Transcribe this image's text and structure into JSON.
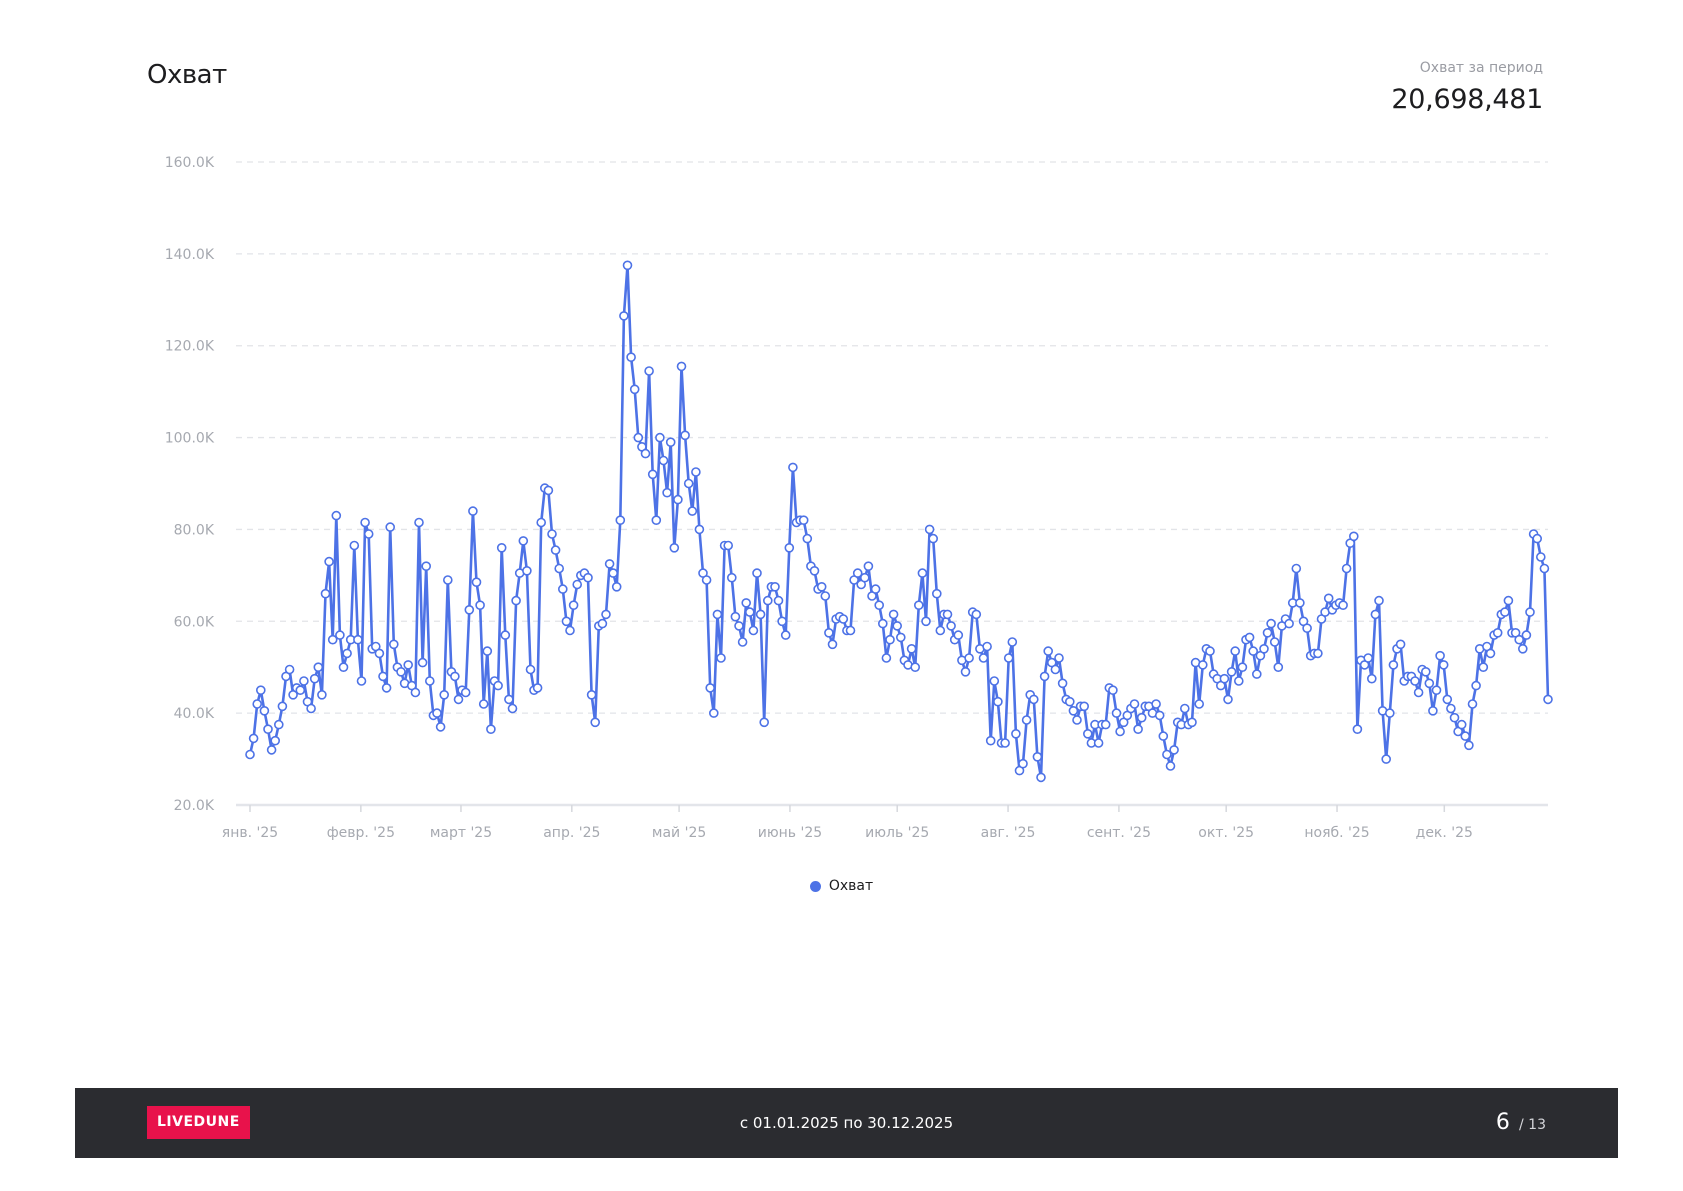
{
  "header": {
    "title": "Охват",
    "summary_label": "Охват за период",
    "summary_value": "20,698,481"
  },
  "legend": {
    "label": "Охват"
  },
  "footer": {
    "logo": "LIVEDUNE",
    "period": "с 01.01.2025 по 30.12.2025",
    "page_current": "6",
    "page_total": "/ 13"
  },
  "colors": {
    "line": "#4d72e6",
    "grid": "#e2e4e8",
    "axis_text": "#a6a9b0",
    "footer_bg": "#2b2c30",
    "logo_bg": "#e8124b"
  },
  "chart_data": {
    "type": "line",
    "title": "",
    "xlabel": "",
    "ylabel": "",
    "ylim": [
      20000,
      160000
    ],
    "y_ticks": [
      20000,
      40000,
      60000,
      80000,
      100000,
      120000,
      140000,
      160000
    ],
    "y_tick_labels": [
      "20.0K",
      "40.0K",
      "60.0K",
      "80.0K",
      "100.0K",
      "120.0K",
      "140.0K",
      "160.0K"
    ],
    "x_start": "2025-01-01",
    "x_end": "2025-12-30",
    "x_ticks": [
      {
        "date": "2025-01-01",
        "label": "янв. '25"
      },
      {
        "date": "2025-02-01",
        "label": "февр. '25"
      },
      {
        "date": "2025-03-01",
        "label": "март '25"
      },
      {
        "date": "2025-04-01",
        "label": "апр. '25"
      },
      {
        "date": "2025-05-01",
        "label": "май '25"
      },
      {
        "date": "2025-06-01",
        "label": "июнь '25"
      },
      {
        "date": "2025-07-01",
        "label": "июль '25"
      },
      {
        "date": "2025-08-01",
        "label": "авг. '25"
      },
      {
        "date": "2025-09-01",
        "label": "сент. '25"
      },
      {
        "date": "2025-10-01",
        "label": "окт. '25"
      },
      {
        "date": "2025-11-01",
        "label": "нояб. '25"
      },
      {
        "date": "2025-12-01",
        "label": "дек. '25"
      }
    ],
    "grid": true,
    "legend_position": "bottom",
    "series": [
      {
        "name": "Охват",
        "color": "#4d72e6",
        "values": [
          31000,
          34500,
          42000,
          45000,
          40500,
          36500,
          32000,
          34000,
          37500,
          41500,
          48000,
          49500,
          44000,
          45500,
          45000,
          47000,
          42500,
          41000,
          47500,
          50000,
          44000,
          66000,
          73000,
          56000,
          83000,
          57000,
          50000,
          53000,
          56000,
          76500,
          56000,
          47000,
          81500,
          79000,
          54000,
          54500,
          53000,
          48000,
          45500,
          80500,
          55000,
          50000,
          49000,
          46500,
          50500,
          46000,
          44500,
          81500,
          51000,
          72000,
          47000,
          39500,
          40000,
          37000,
          44000,
          69000,
          49000,
          48000,
          43000,
          45000,
          44500,
          62500,
          84000,
          68500,
          63500,
          42000,
          53500,
          36500,
          47000,
          46000,
          76000,
          57000,
          43000,
          41000,
          64500,
          70500,
          77500,
          71000,
          49500,
          45000,
          45500,
          81500,
          89000,
          88500,
          79000,
          75500,
          71500,
          67000,
          60000,
          58000,
          63500,
          68000,
          70000,
          70500,
          69500,
          44000,
          38000,
          59000,
          59500,
          61500,
          72500,
          70500,
          67500,
          82000,
          126500,
          137500,
          117500,
          110500,
          100000,
          98000,
          96500,
          114500,
          92000,
          82000,
          100000,
          95000,
          88000,
          99000,
          76000,
          86500,
          115500,
          100500,
          90000,
          84000,
          92500,
          80000,
          70500,
          69000,
          45500,
          40000,
          61500,
          52000,
          76500,
          76500,
          69500,
          61000,
          59000,
          55500,
          64000,
          62000,
          58000,
          70500,
          61500,
          38000,
          64500,
          67500,
          67500,
          64500,
          60000,
          57000,
          76000,
          93500,
          81500,
          82000,
          82000,
          78000,
          72000,
          71000,
          67000,
          67500,
          65500,
          57500,
          55000,
          60500,
          61000,
          60500,
          58000,
          58000,
          69000,
          70500,
          68000,
          69500,
          72000,
          65500,
          67000,
          63500,
          59500,
          52000,
          56000,
          61500,
          59000,
          56500,
          51500,
          50500,
          54000,
          50000,
          63500,
          70500,
          60000,
          80000,
          78000,
          66000,
          58000,
          61500,
          61500,
          59000,
          56000,
          57000,
          51500,
          49000,
          52000,
          62000,
          61500,
          54000,
          52000,
          54500,
          34000,
          47000,
          42500,
          33500,
          33500,
          52000,
          55500,
          35500,
          27500,
          29000,
          38500,
          44000,
          43000,
          30500,
          26000,
          48000,
          53500,
          51000,
          49500,
          52000,
          46500,
          43000,
          42500,
          40500,
          38500,
          41500,
          41500,
          35500,
          33500,
          37500,
          33500,
          37500,
          37500,
          45500,
          45000,
          40000,
          36000,
          38000,
          39500,
          41000,
          42000,
          36500,
          39000,
          41500,
          41500,
          40000,
          42000,
          39500,
          35000,
          31000,
          28500,
          32000,
          38000,
          37500,
          41000,
          37500,
          38000,
          51000,
          42000,
          50500,
          54000,
          53500,
          48500,
          47500,
          46000,
          47500,
          43000,
          49000,
          53500,
          47000,
          50000,
          56000,
          56500,
          53500,
          48500,
          52500,
          54000,
          57500,
          59500,
          55500,
          50000,
          59000,
          60500,
          59500,
          64000,
          71500,
          64000,
          60000,
          58500,
          52500,
          53000,
          53000,
          60500,
          62000,
          65000,
          62500,
          63500,
          64000,
          63500,
          71500,
          77000,
          78500,
          36500,
          51500,
          50500,
          52000,
          47500,
          61500,
          64500,
          40500,
          30000,
          40000,
          50500,
          54000,
          55000,
          47000,
          48000,
          48000,
          47000,
          44500,
          49500,
          49000,
          46500,
          40500,
          45000,
          52500,
          50500,
          43000,
          41000,
          39000,
          36000,
          37500,
          35000,
          33000,
          42000,
          46000,
          54000,
          50000,
          54500,
          53000,
          57000,
          57500,
          61500,
          62000,
          64500,
          57500,
          57500,
          56000,
          54000,
          57000,
          62000,
          79000,
          78000,
          74000,
          71500,
          43000
        ]
      }
    ]
  }
}
